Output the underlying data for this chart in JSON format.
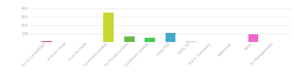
{
  "categories": [
    "Ax Co Competition",
    "Arus Ori Trade",
    "Arus Ori Trade",
    "Ivy Private Limited",
    "Ivy Private Limited",
    "Ivy Private Limited",
    "Indpv FAG",
    "NGPL HO",
    "M.K.A. Transports",
    "Waterman",
    "Sales",
    "Sri Managements"
  ],
  "values": [
    8,
    3,
    3,
    350,
    70,
    50,
    110,
    8,
    0,
    0,
    90,
    2
  ],
  "bar_colors": [
    "#cc2222",
    "#aaaaaa",
    "#aaaaaa",
    "#c8d830",
    "#66bb44",
    "#44cc55",
    "#44aacc",
    "#aaccdd",
    "#cc44cc",
    "#ddaacc",
    "#ee66cc",
    "#ccaacc"
  ],
  "ylim": [
    0,
    450
  ],
  "yticks": [
    100,
    200,
    300,
    400
  ],
  "background_color": "#ffffff",
  "grid_color": "#e0e0e0",
  "bar_width": 0.5,
  "tick_fontsize": 4,
  "label_fontsize": 3.5
}
